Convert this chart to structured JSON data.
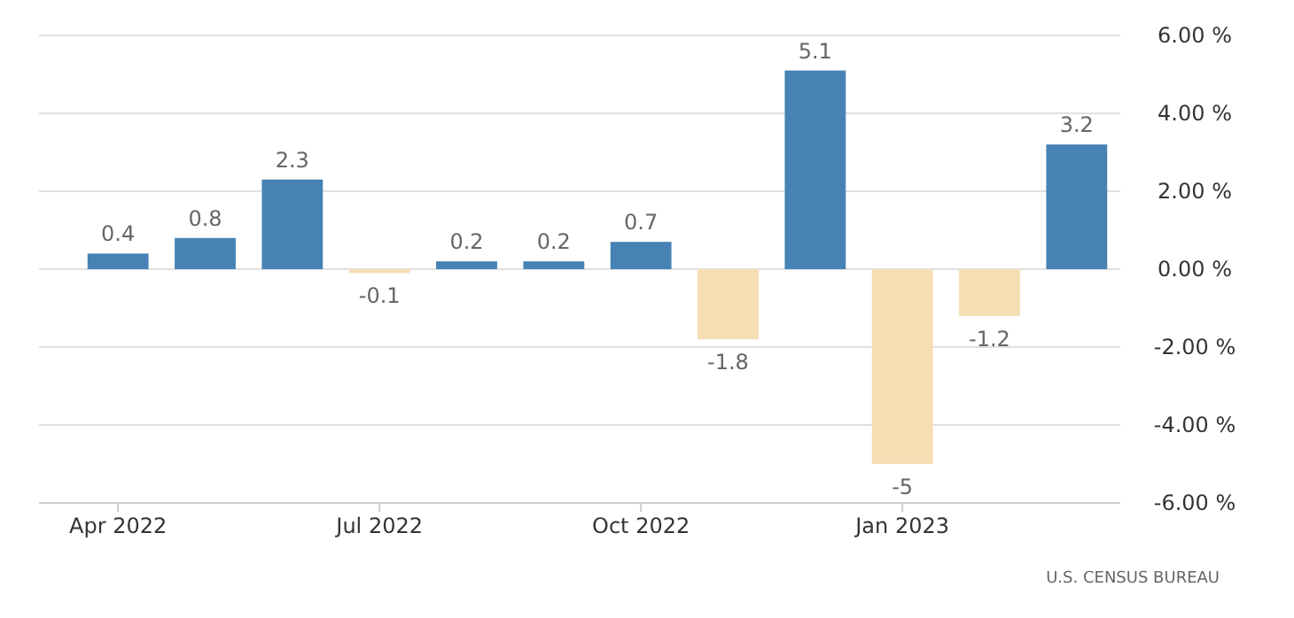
{
  "chart_data": {
    "type": "bar",
    "categories": [
      "Apr 2022",
      null,
      null,
      "Jul 2022",
      null,
      null,
      "Oct 2022",
      null,
      null,
      "Jan 2023",
      null,
      null
    ],
    "values": [
      0.4,
      0.8,
      2.3,
      -0.1,
      0.2,
      0.2,
      0.7,
      -1.8,
      5.1,
      -5,
      -1.2,
      3.2
    ],
    "colors": [
      "#4682b4",
      "#4682b4",
      "#4682b4",
      "#f5deb3",
      "#4682b4",
      "#4682b4",
      "#4682b4",
      "#f5deb3",
      "#4682b4",
      "#f5deb3",
      "#f5deb3",
      "#4682b4"
    ],
    "ylim": [
      -6,
      6
    ],
    "yticks": [
      {
        "value": -6,
        "label": "-6.00 %"
      },
      {
        "value": -4,
        "label": "-4.00 %"
      },
      {
        "value": -2,
        "label": "-2.00 %"
      },
      {
        "value": 0,
        "label": "0.00 %"
      },
      {
        "value": 2,
        "label": "2.00 %"
      },
      {
        "value": 4,
        "label": "4.00 %"
      },
      {
        "value": 6,
        "label": "6.00 %"
      }
    ],
    "grid": "y",
    "data_labels": true,
    "annotations": [
      "U.S. CENSUS BUREAU"
    ]
  }
}
